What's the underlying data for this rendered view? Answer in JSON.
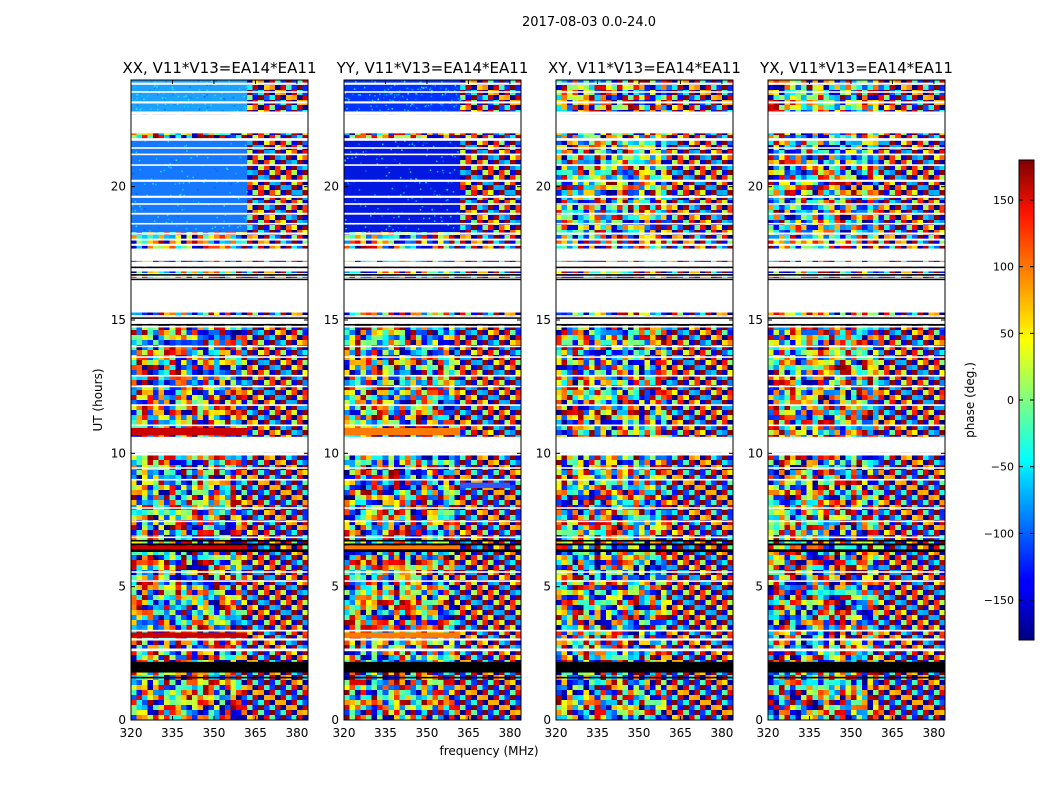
{
  "chart_data": {
    "type": "heatmap",
    "title": "2017-08-03 0.0-24.0",
    "xlabel": "frequency (MHz)",
    "ylabel": "UT (hours)",
    "xlim": [
      320,
      384
    ],
    "ylim": [
      0,
      24
    ],
    "x_ticks": [
      320,
      335,
      350,
      365,
      380
    ],
    "y_ticks": [
      0,
      5,
      10,
      15,
      20
    ],
    "colorbar": {
      "label": "phase (deg.)",
      "range": [
        -180,
        180
      ],
      "ticks": [
        -150,
        -100,
        -50,
        0,
        50,
        100,
        150
      ],
      "colormap": "jet"
    },
    "panels": [
      {
        "title": "XX, V11*V13=EA14*EA11"
      },
      {
        "title": "YY, V11*V13=EA14*EA11"
      },
      {
        "title": "XY, V11*V13=EA14*EA11"
      },
      {
        "title": "YX, V11*V13=EA14*EA11"
      }
    ],
    "flagged_bands_hours": [
      [
        2.58,
        2.68
      ],
      [
        2.98,
        3.06
      ],
      [
        3.32,
        3.38
      ],
      [
        5.18,
        5.24
      ],
      [
        5.52,
        5.58
      ],
      [
        6.82,
        6.88
      ],
      [
        7.42,
        7.48
      ],
      [
        7.92,
        7.98
      ],
      [
        8.98,
        9.04
      ],
      [
        9.42,
        9.48
      ],
      [
        9.92,
        10.02
      ],
      [
        10.02,
        10.62
      ],
      [
        11.02,
        11.08
      ],
      [
        11.78,
        11.84
      ],
      [
        12.48,
        12.54
      ],
      [
        12.88,
        12.94
      ],
      [
        13.58,
        13.64
      ],
      [
        13.98,
        14.04
      ],
      [
        14.72,
        14.78
      ],
      [
        14.82,
        14.88
      ],
      [
        14.88,
        15.12
      ],
      [
        15.12,
        15.18
      ],
      [
        15.28,
        16.52
      ],
      [
        16.52,
        16.58
      ],
      [
        16.62,
        16.66
      ],
      [
        16.72,
        16.76
      ],
      [
        16.82,
        17.02
      ],
      [
        17.02,
        17.18
      ],
      [
        17.22,
        17.68
      ],
      [
        17.78,
        17.86
      ],
      [
        17.98,
        18.05
      ],
      [
        18.2,
        18.28
      ],
      [
        18.58,
        18.64
      ],
      [
        18.95,
        19.02
      ],
      [
        19.32,
        19.38
      ],
      [
        19.58,
        19.66
      ],
      [
        20.18,
        20.26
      ],
      [
        20.78,
        20.84
      ],
      [
        21.18,
        21.24
      ],
      [
        21.42,
        21.48
      ],
      [
        21.72,
        21.82
      ],
      [
        22.0,
        22.72
      ],
      [
        22.72,
        22.82
      ],
      [
        23.12,
        23.2
      ],
      [
        23.52,
        23.58
      ],
      [
        23.82,
        23.9
      ]
    ],
    "black_bands_hours": [
      [
        1.78,
        2.18
      ],
      [
        1.56,
        1.62
      ],
      [
        6.3,
        6.4
      ],
      [
        6.55,
        6.62
      ],
      [
        6.7,
        6.75
      ],
      [
        14.8,
        14.85
      ],
      [
        15.05,
        15.1
      ],
      [
        16.5,
        16.55
      ],
      [
        16.68,
        16.72
      ],
      [
        16.95,
        17.0
      ]
    ],
    "colored_bands": [
      {
        "panel": 0,
        "hours": [
          10.68,
          10.95
        ],
        "color": "#cc0000"
      },
      {
        "panel": 0,
        "hours": [
          6.38,
          6.55
        ],
        "color": "#cc0000"
      },
      {
        "panel": 0,
        "hours": [
          3.08,
          3.28
        ],
        "color": "#cc0000"
      },
      {
        "panel": 1,
        "hours": [
          10.68,
          10.95
        ],
        "color": "#ff7a00"
      },
      {
        "panel": 1,
        "hours": [
          6.38,
          6.55
        ],
        "color": "#ff7a00"
      },
      {
        "panel": 1,
        "hours": [
          3.08,
          3.28
        ],
        "color": "#ff7a00"
      },
      {
        "panel": 1,
        "hours": [
          8.7,
          8.9
        ],
        "color": "#3355ff"
      }
    ],
    "coherent_regions": [
      {
        "panel": 0,
        "hours": [
          22.82,
          24.0
        ],
        "color": "#1ea0ff"
      },
      {
        "panel": 0,
        "hours": [
          18.3,
          21.8
        ],
        "color": "#1677ff"
      },
      {
        "panel": 1,
        "hours": [
          22.82,
          24.0
        ],
        "color": "#0033ff"
      },
      {
        "panel": 1,
        "hours": [
          18.3,
          21.8
        ],
        "color": "#0018e0"
      }
    ]
  }
}
